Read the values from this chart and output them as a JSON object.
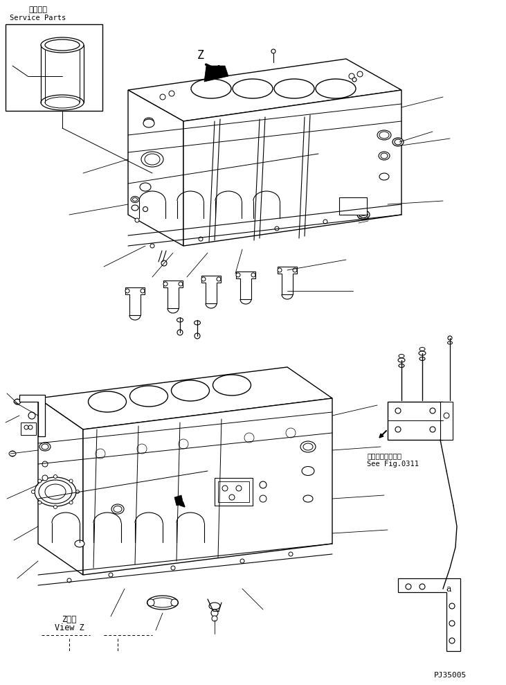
{
  "background_color": "#ffffff",
  "line_color": "#000000",
  "service_parts_text_jp": "補給専用",
  "service_parts_text_en": "Service Parts",
  "view_z_jp": "Z　視",
  "view_z_en": "View Z",
  "see_fig_jp": "第０３１１図参照",
  "see_fig_en": "See Fig.0311",
  "part_number": "PJ35005",
  "fig_width": 731,
  "fig_height": 989
}
